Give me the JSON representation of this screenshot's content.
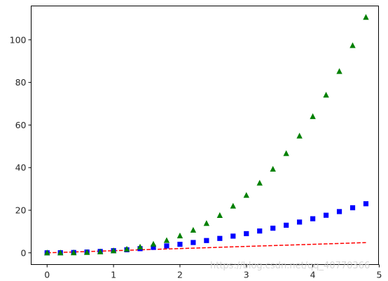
{
  "chart_data": {
    "type": "line",
    "title": "",
    "xlabel": "",
    "ylabel": "",
    "xlim": [
      -0.24,
      4.99
    ],
    "ylim": [
      -5.5,
      115.9
    ],
    "xticks": [
      0,
      1,
      2,
      3,
      4,
      5
    ],
    "yticks": [
      0,
      20,
      40,
      60,
      80,
      100
    ],
    "grid": false,
    "x": [
      0.0,
      0.2,
      0.4,
      0.6,
      0.8,
      1.0,
      1.2,
      1.4,
      1.6,
      1.8,
      2.0,
      2.2,
      2.4,
      2.6,
      2.8,
      3.0,
      3.2,
      3.4,
      3.6,
      3.8,
      4.0,
      4.2,
      4.4,
      4.6,
      4.8
    ],
    "series": [
      {
        "style": "dashed-line",
        "color": "#ff0000",
        "values": [
          0.0,
          0.2,
          0.4,
          0.6,
          0.8,
          1.0,
          1.2,
          1.4,
          1.6,
          1.8,
          2.0,
          2.2,
          2.4,
          2.6,
          2.8,
          3.0,
          3.2,
          3.4,
          3.6,
          3.8,
          4.0,
          4.2,
          4.4,
          4.6,
          4.8
        ]
      },
      {
        "style": "square-markers",
        "color": "#0000ff",
        "values": [
          0.0,
          0.04,
          0.16,
          0.36,
          0.64,
          1.0,
          1.44,
          1.96,
          2.56,
          3.24,
          4.0,
          4.84,
          5.76,
          6.76,
          7.84,
          9.0,
          10.24,
          11.56,
          12.96,
          14.44,
          16.0,
          17.64,
          19.36,
          21.16,
          23.04
        ]
      },
      {
        "style": "triangle-markers",
        "color": "#008000",
        "values": [
          0.0,
          0.008,
          0.064,
          0.216,
          0.512,
          1.0,
          1.728,
          2.744,
          4.096,
          5.832,
          8.0,
          10.648,
          13.824,
          17.576,
          21.952,
          27.0,
          32.768,
          39.304,
          46.656,
          54.872,
          64.0,
          74.088,
          85.184,
          97.336,
          110.592
        ]
      }
    ]
  },
  "watermark": "https://blog.csdn.net/qq_40770366"
}
